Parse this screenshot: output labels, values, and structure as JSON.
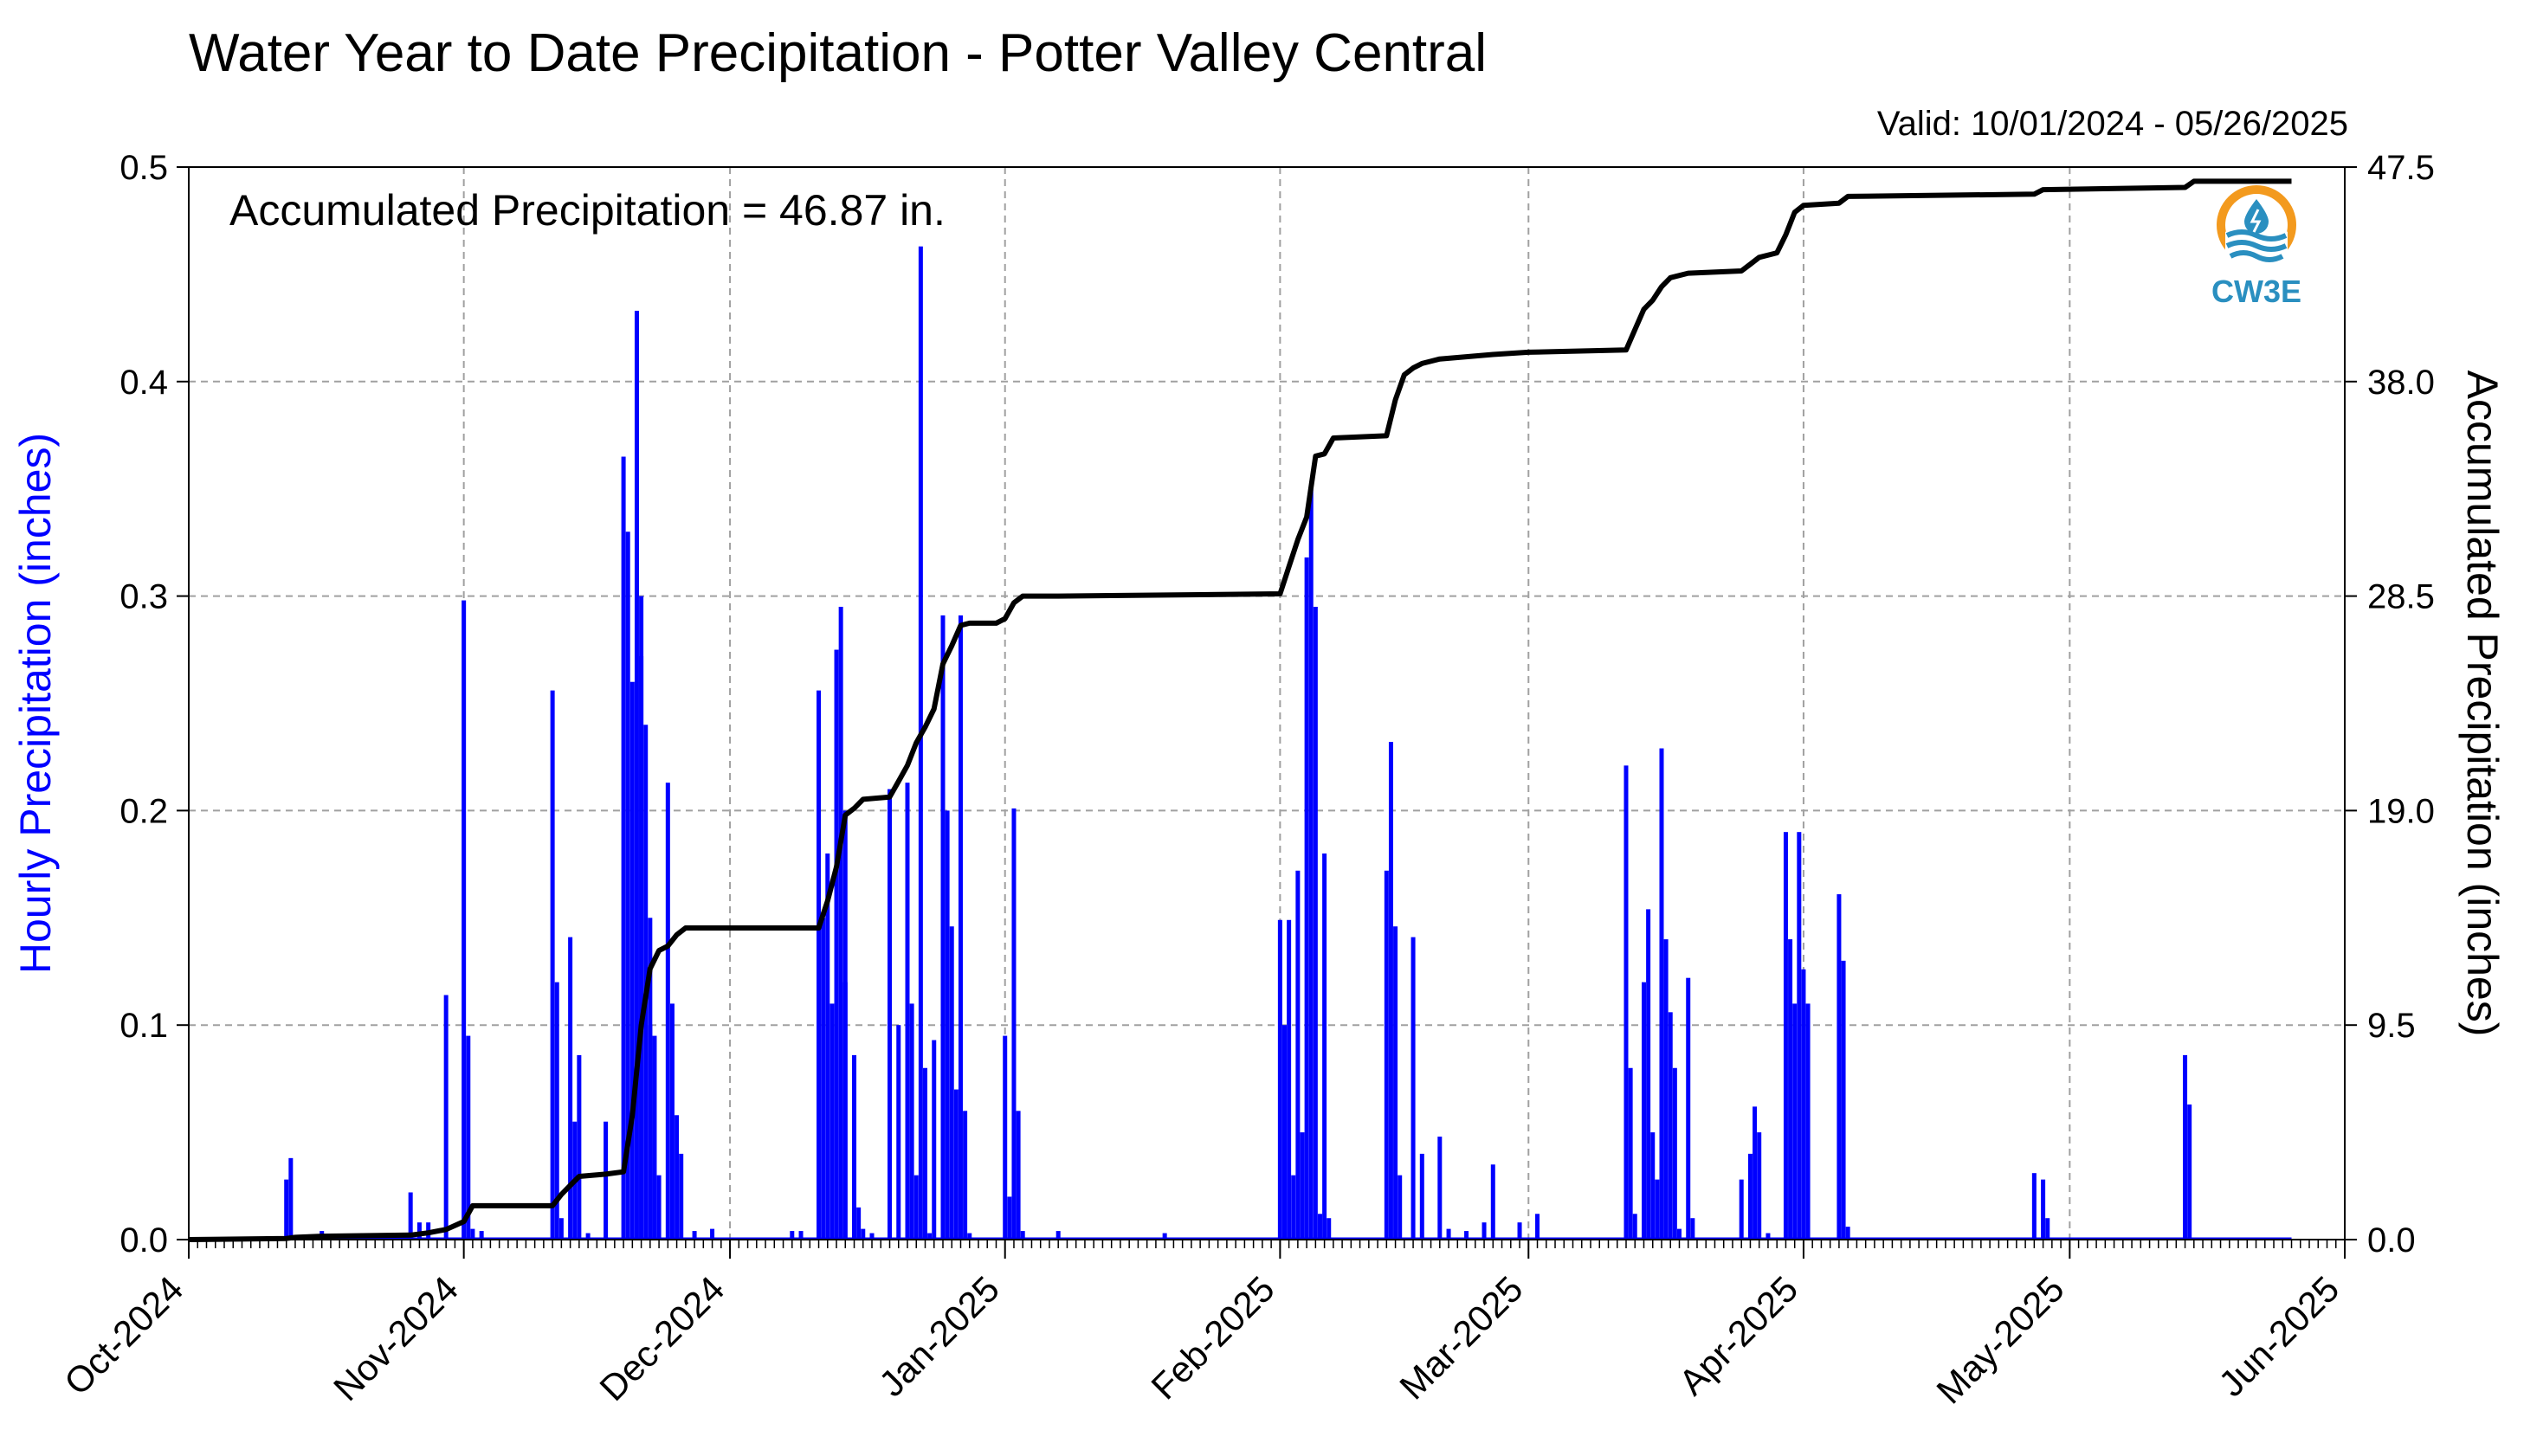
{
  "title": "Water Year to Date Precipitation - Potter Valley Central",
  "valid_text": "Valid: 10/01/2024 - 05/26/2025",
  "annotation": "Accumulated Precipitation = 46.87 in.",
  "logo": {
    "text": "CW3E",
    "icon": "cw3e-logo-icon"
  },
  "colors": {
    "bars": "#0000ff",
    "line": "#000000",
    "grid": "#a0a0a0",
    "logo_orange": "#f39a1e",
    "logo_blue": "#2a8fc0"
  },
  "chart_data": {
    "type": "bar",
    "title": "Water Year to Date Precipitation - Potter Valley Central",
    "x_range": [
      "2024-10-01",
      "2025-06-01"
    ],
    "month_ticks": [
      "Oct-2024",
      "Nov-2024",
      "Dec-2024",
      "Jan-2025",
      "Feb-2025",
      "Mar-2025",
      "Apr-2025",
      "May-2025",
      "Jun-2025"
    ],
    "y_left": {
      "label": "Hourly Precipitation (inches)",
      "lim": [
        0,
        0.5
      ],
      "ticks": [
        "0.0",
        "0.1",
        "0.2",
        "0.3",
        "0.4",
        "0.5"
      ]
    },
    "y_right": {
      "label": "Accumulated Precipitation (inches)",
      "lim": [
        0,
        47.5
      ],
      "ticks": [
        "0.0",
        "9.5",
        "19.0",
        "28.5",
        "38.0",
        "47.5"
      ]
    },
    "grid": true,
    "series": [
      {
        "name": "Hourly Precipitation (inches)",
        "type": "bar",
        "axis": "left",
        "points": [
          [
            "2024-10-12",
            0.028
          ],
          [
            "2024-10-12",
            0.038
          ],
          [
            "2024-10-16",
            0.004
          ],
          [
            "2024-10-26",
            0.022
          ],
          [
            "2024-10-27",
            0.008
          ],
          [
            "2024-10-28",
            0.008
          ],
          [
            "2024-10-30",
            0.114
          ],
          [
            "2024-11-01",
            0.298
          ],
          [
            "2024-11-01",
            0.095
          ],
          [
            "2024-11-02",
            0.005
          ],
          [
            "2024-11-03",
            0.004
          ],
          [
            "2024-11-11",
            0.256
          ],
          [
            "2024-11-11",
            0.12
          ],
          [
            "2024-11-12",
            0.01
          ],
          [
            "2024-11-13",
            0.141
          ],
          [
            "2024-11-13",
            0.055
          ],
          [
            "2024-11-14",
            0.086
          ],
          [
            "2024-11-15",
            0.003
          ],
          [
            "2024-11-17",
            0.055
          ],
          [
            "2024-11-19",
            0.365
          ],
          [
            "2024-11-19",
            0.33
          ],
          [
            "2024-11-20",
            0.26
          ],
          [
            "2024-11-20",
            0.433
          ],
          [
            "2024-11-20",
            0.3
          ],
          [
            "2024-11-21",
            0.272
          ],
          [
            "2024-11-21",
            0.24
          ],
          [
            "2024-11-21",
            0.15
          ],
          [
            "2024-11-22",
            0.1
          ],
          [
            "2024-11-22",
            0.095
          ],
          [
            "2024-11-23",
            0.03
          ],
          [
            "2024-11-24",
            0.213
          ],
          [
            "2024-11-24",
            0.11
          ],
          [
            "2024-11-25",
            0.058
          ],
          [
            "2024-11-25",
            0.04
          ],
          [
            "2024-11-27",
            0.004
          ],
          [
            "2024-11-29",
            0.005
          ],
          [
            "2024-12-08",
            0.004
          ],
          [
            "2024-12-09",
            0.004
          ],
          [
            "2024-12-11",
            0.256
          ],
          [
            "2024-12-11",
            0.15
          ],
          [
            "2024-12-12",
            0.18
          ],
          [
            "2024-12-12",
            0.11
          ],
          [
            "2024-12-13",
            0.275
          ],
          [
            "2024-12-13",
            0.295
          ],
          [
            "2024-12-13",
            0.2
          ],
          [
            "2024-12-14",
            0.12
          ],
          [
            "2024-12-15",
            0.086
          ],
          [
            "2024-12-15",
            0.015
          ],
          [
            "2024-12-16",
            0.005
          ],
          [
            "2024-12-17",
            0.003
          ],
          [
            "2024-12-19",
            0.21
          ],
          [
            "2024-12-20",
            0.1
          ],
          [
            "2024-12-21",
            0.213
          ],
          [
            "2024-12-21",
            0.11
          ],
          [
            "2024-12-22",
            0.03
          ],
          [
            "2024-12-22",
            0.463
          ],
          [
            "2024-12-23",
            0.08
          ],
          [
            "2024-12-23",
            0.003
          ],
          [
            "2024-12-24",
            0.093
          ],
          [
            "2024-12-25",
            0.291
          ],
          [
            "2024-12-25",
            0.2
          ],
          [
            "2024-12-26",
            0.146
          ],
          [
            "2024-12-26",
            0.07
          ],
          [
            "2024-12-27",
            0.291
          ],
          [
            "2024-12-27",
            0.06
          ],
          [
            "2024-12-28",
            0.003
          ],
          [
            "2025-01-01",
            0.095
          ],
          [
            "2025-01-01",
            0.02
          ],
          [
            "2025-01-02",
            0.201
          ],
          [
            "2025-01-02",
            0.06
          ],
          [
            "2025-01-03",
            0.004
          ],
          [
            "2025-01-07",
            0.004
          ],
          [
            "2025-01-19",
            0.003
          ],
          [
            "2025-02-01",
            0.149
          ],
          [
            "2025-02-01",
            0.1
          ],
          [
            "2025-02-02",
            0.149
          ],
          [
            "2025-02-02",
            0.03
          ],
          [
            "2025-02-03",
            0.172
          ],
          [
            "2025-02-03",
            0.05
          ],
          [
            "2025-02-04",
            0.318
          ],
          [
            "2025-02-04",
            0.35
          ],
          [
            "2025-02-05",
            0.295
          ],
          [
            "2025-02-05",
            0.012
          ],
          [
            "2025-02-06",
            0.18
          ],
          [
            "2025-02-06",
            0.01
          ],
          [
            "2025-02-13",
            0.172
          ],
          [
            "2025-02-13",
            0.232
          ],
          [
            "2025-02-14",
            0.146
          ],
          [
            "2025-02-14",
            0.03
          ],
          [
            "2025-02-16",
            0.141
          ],
          [
            "2025-02-17",
            0.04
          ],
          [
            "2025-02-19",
            0.048
          ],
          [
            "2025-02-20",
            0.005
          ],
          [
            "2025-02-22",
            0.004
          ],
          [
            "2025-02-24",
            0.008
          ],
          [
            "2025-02-25",
            0.035
          ],
          [
            "2025-02-28",
            0.008
          ],
          [
            "2025-03-02",
            0.012
          ],
          [
            "2025-03-12",
            0.221
          ],
          [
            "2025-03-12",
            0.08
          ],
          [
            "2025-03-13",
            0.012
          ],
          [
            "2025-03-14",
            0.12
          ],
          [
            "2025-03-14",
            0.154
          ],
          [
            "2025-03-15",
            0.05
          ],
          [
            "2025-03-15",
            0.028
          ],
          [
            "2025-03-16",
            0.229
          ],
          [
            "2025-03-16",
            0.14
          ],
          [
            "2025-03-17",
            0.106
          ],
          [
            "2025-03-17",
            0.08
          ],
          [
            "2025-03-18",
            0.005
          ],
          [
            "2025-03-19",
            0.122
          ],
          [
            "2025-03-19",
            0.01
          ],
          [
            "2025-03-25",
            0.028
          ],
          [
            "2025-03-26",
            0.04
          ],
          [
            "2025-03-26",
            0.062
          ],
          [
            "2025-03-27",
            0.05
          ],
          [
            "2025-03-28",
            0.003
          ],
          [
            "2025-03-30",
            0.19
          ],
          [
            "2025-03-30",
            0.14
          ],
          [
            "2025-03-31",
            0.11
          ],
          [
            "2025-03-31",
            0.19
          ],
          [
            "2025-04-01",
            0.126
          ],
          [
            "2025-04-01",
            0.11
          ],
          [
            "2025-04-05",
            0.161
          ],
          [
            "2025-04-05",
            0.13
          ],
          [
            "2025-04-06",
            0.006
          ],
          [
            "2025-04-27",
            0.031
          ],
          [
            "2025-04-28",
            0.028
          ],
          [
            "2025-04-28",
            0.01
          ],
          [
            "2025-05-14",
            0.086
          ],
          [
            "2025-05-14",
            0.063
          ]
        ]
      },
      {
        "name": "Accumulated Precipitation (inches)",
        "type": "line",
        "axis": "right",
        "points": [
          [
            "2024-10-01",
            0.0
          ],
          [
            "2024-10-12",
            0.05
          ],
          [
            "2024-10-13",
            0.1
          ],
          [
            "2024-10-16",
            0.15
          ],
          [
            "2024-10-26",
            0.2
          ],
          [
            "2024-10-28",
            0.3
          ],
          [
            "2024-10-30",
            0.45
          ],
          [
            "2024-11-01",
            0.8
          ],
          [
            "2024-11-02",
            1.5
          ],
          [
            "2024-11-11",
            1.5
          ],
          [
            "2024-11-12",
            2.0
          ],
          [
            "2024-11-13",
            2.4
          ],
          [
            "2024-11-14",
            2.8
          ],
          [
            "2024-11-17",
            2.9
          ],
          [
            "2024-11-19",
            3.0
          ],
          [
            "2024-11-20",
            5.5
          ],
          [
            "2024-11-21",
            9.5
          ],
          [
            "2024-11-22",
            12.0
          ],
          [
            "2024-11-23",
            12.8
          ],
          [
            "2024-11-24",
            13.0
          ],
          [
            "2024-11-25",
            13.5
          ],
          [
            "2024-11-26",
            13.8
          ],
          [
            "2024-12-11",
            13.8
          ],
          [
            "2024-12-12",
            15.0
          ],
          [
            "2024-12-13",
            16.5
          ],
          [
            "2024-12-14",
            18.8
          ],
          [
            "2024-12-15",
            19.1
          ],
          [
            "2024-12-16",
            19.5
          ],
          [
            "2024-12-19",
            19.6
          ],
          [
            "2024-12-20",
            20.3
          ],
          [
            "2024-12-21",
            21.0
          ],
          [
            "2024-12-22",
            22.0
          ],
          [
            "2024-12-23",
            22.7
          ],
          [
            "2024-12-24",
            23.5
          ],
          [
            "2024-12-25",
            25.5
          ],
          [
            "2024-12-26",
            26.3
          ],
          [
            "2024-12-27",
            27.2
          ],
          [
            "2024-12-28",
            27.3
          ],
          [
            "2024-12-31",
            27.3
          ],
          [
            "2025-01-01",
            27.5
          ],
          [
            "2025-01-02",
            28.2
          ],
          [
            "2025-01-03",
            28.5
          ],
          [
            "2025-01-07",
            28.5
          ],
          [
            "2025-02-01",
            28.6
          ],
          [
            "2025-02-02",
            29.8
          ],
          [
            "2025-02-03",
            31.0
          ],
          [
            "2025-02-04",
            32.0
          ],
          [
            "2025-02-05",
            34.7
          ],
          [
            "2025-02-06",
            34.8
          ],
          [
            "2025-02-07",
            35.5
          ],
          [
            "2025-02-13",
            35.6
          ],
          [
            "2025-02-14",
            37.2
          ],
          [
            "2025-02-15",
            38.3
          ],
          [
            "2025-02-16",
            38.6
          ],
          [
            "2025-02-17",
            38.8
          ],
          [
            "2025-02-19",
            39.0
          ],
          [
            "2025-02-25",
            39.2
          ],
          [
            "2025-03-01",
            39.3
          ],
          [
            "2025-03-12",
            39.4
          ],
          [
            "2025-03-13",
            40.3
          ],
          [
            "2025-03-14",
            41.2
          ],
          [
            "2025-03-15",
            41.6
          ],
          [
            "2025-03-16",
            42.2
          ],
          [
            "2025-03-17",
            42.6
          ],
          [
            "2025-03-19",
            42.8
          ],
          [
            "2025-03-25",
            42.9
          ],
          [
            "2025-03-26",
            43.2
          ],
          [
            "2025-03-27",
            43.5
          ],
          [
            "2025-03-29",
            43.7
          ],
          [
            "2025-03-30",
            44.5
          ],
          [
            "2025-03-31",
            45.5
          ],
          [
            "2025-04-01",
            45.8
          ],
          [
            "2025-04-05",
            45.9
          ],
          [
            "2025-04-06",
            46.2
          ],
          [
            "2025-04-27",
            46.3
          ],
          [
            "2025-04-28",
            46.5
          ],
          [
            "2025-05-14",
            46.6
          ],
          [
            "2025-05-15",
            46.87
          ],
          [
            "2025-05-26",
            46.87
          ]
        ]
      }
    ]
  }
}
